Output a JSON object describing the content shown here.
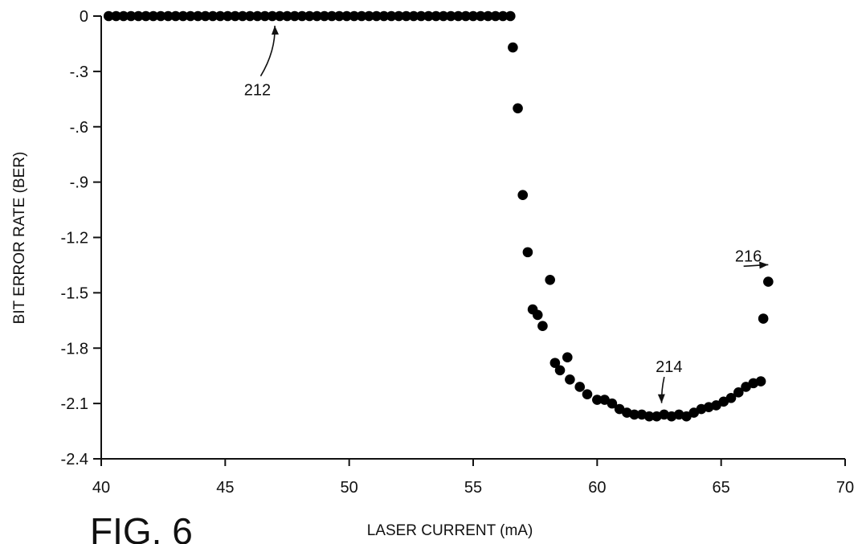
{
  "figure_label": "FIG. 6",
  "chart_data": {
    "type": "scatter",
    "title": "",
    "xlabel": "LASER CURRENT (mA)",
    "ylabel": "BIT ERROR RATE (BER)",
    "xlim": [
      40,
      70
    ],
    "ylim": [
      -2.4,
      0
    ],
    "xticks": [
      40,
      45,
      50,
      55,
      60,
      65,
      70
    ],
    "yticks": [
      0,
      -0.3,
      -0.6,
      -0.9,
      -1.2,
      -1.5,
      -1.8,
      -2.1,
      -2.4
    ],
    "xtick_labels": [
      "40",
      "45",
      "50",
      "55",
      "60",
      "65",
      "70"
    ],
    "ytick_labels": [
      "0",
      "-.3",
      "-.6",
      "-.9",
      "-1.2",
      "-1.5",
      "-1.8",
      "-2.1",
      "-2.4"
    ],
    "grid": false,
    "series": [
      {
        "color": "#000000",
        "points": [
          [
            40.3,
            0
          ],
          [
            40.6,
            0
          ],
          [
            40.9,
            0
          ],
          [
            41.2,
            0
          ],
          [
            41.5,
            0
          ],
          [
            41.8,
            0
          ],
          [
            42.1,
            0
          ],
          [
            42.4,
            0
          ],
          [
            42.7,
            0
          ],
          [
            43.0,
            0
          ],
          [
            43.3,
            0
          ],
          [
            43.6,
            0
          ],
          [
            43.9,
            0
          ],
          [
            44.2,
            0
          ],
          [
            44.5,
            0
          ],
          [
            44.8,
            0
          ],
          [
            45.1,
            0
          ],
          [
            45.4,
            0
          ],
          [
            45.7,
            0
          ],
          [
            46.0,
            0
          ],
          [
            46.3,
            0
          ],
          [
            46.6,
            0
          ],
          [
            46.9,
            0
          ],
          [
            47.2,
            0
          ],
          [
            47.5,
            0
          ],
          [
            47.8,
            0
          ],
          [
            48.1,
            0
          ],
          [
            48.4,
            0
          ],
          [
            48.7,
            0
          ],
          [
            49.0,
            0
          ],
          [
            49.3,
            0
          ],
          [
            49.6,
            0
          ],
          [
            49.9,
            0
          ],
          [
            50.2,
            0
          ],
          [
            50.5,
            0
          ],
          [
            50.8,
            0
          ],
          [
            51.1,
            0
          ],
          [
            51.4,
            0
          ],
          [
            51.7,
            0
          ],
          [
            52.0,
            0
          ],
          [
            52.3,
            0
          ],
          [
            52.6,
            0
          ],
          [
            52.9,
            0
          ],
          [
            53.2,
            0
          ],
          [
            53.5,
            0
          ],
          [
            53.8,
            0
          ],
          [
            54.1,
            0
          ],
          [
            54.4,
            0
          ],
          [
            54.7,
            0
          ],
          [
            55.0,
            0
          ],
          [
            55.3,
            0
          ],
          [
            55.6,
            0
          ],
          [
            55.9,
            0
          ],
          [
            56.2,
            0
          ],
          [
            56.5,
            0
          ],
          [
            56.6,
            -0.17
          ],
          [
            56.8,
            -0.5
          ],
          [
            57.0,
            -0.97
          ],
          [
            57.2,
            -1.28
          ],
          [
            58.1,
            -1.43
          ],
          [
            57.4,
            -1.59
          ],
          [
            57.6,
            -1.62
          ],
          [
            57.8,
            -1.68
          ],
          [
            58.3,
            -1.88
          ],
          [
            58.8,
            -1.85
          ],
          [
            58.5,
            -1.92
          ],
          [
            58.9,
            -1.97
          ],
          [
            59.3,
            -2.01
          ],
          [
            59.6,
            -2.05
          ],
          [
            60.0,
            -2.08
          ],
          [
            60.3,
            -2.08
          ],
          [
            60.6,
            -2.1
          ],
          [
            60.9,
            -2.13
          ],
          [
            61.2,
            -2.15
          ],
          [
            61.5,
            -2.16
          ],
          [
            61.8,
            -2.16
          ],
          [
            62.1,
            -2.17
          ],
          [
            62.4,
            -2.17
          ],
          [
            62.7,
            -2.16
          ],
          [
            63.0,
            -2.17
          ],
          [
            63.3,
            -2.16
          ],
          [
            63.6,
            -2.17
          ],
          [
            63.9,
            -2.15
          ],
          [
            64.2,
            -2.13
          ],
          [
            64.5,
            -2.12
          ],
          [
            64.8,
            -2.11
          ],
          [
            65.1,
            -2.09
          ],
          [
            65.4,
            -2.07
          ],
          [
            65.7,
            -2.04
          ],
          [
            66.0,
            -2.01
          ],
          [
            66.3,
            -1.99
          ],
          [
            66.6,
            -1.98
          ],
          [
            66.7,
            -1.64
          ],
          [
            66.9,
            -1.44
          ]
        ]
      }
    ],
    "annotations": [
      {
        "text": "212",
        "x": 47.0,
        "y": 0,
        "label_x": 46.3,
        "label_y": -0.43
      },
      {
        "text": "214",
        "x": 62.6,
        "y": -2.15,
        "label_x": 62.9,
        "label_y": -1.93
      },
      {
        "text": "216",
        "x": 66.9,
        "y": -1.4,
        "label_x": 66.1,
        "label_y": -1.33
      }
    ]
  }
}
